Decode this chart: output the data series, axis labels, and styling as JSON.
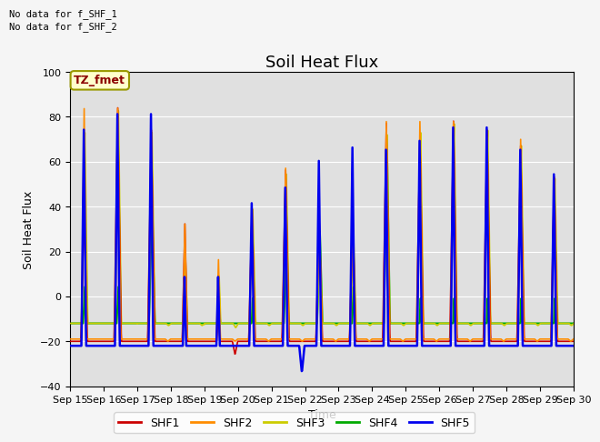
{
  "title": "Soil Heat Flux",
  "xlabel": "Time",
  "ylabel": "Soil Heat Flux",
  "ylim": [
    -40,
    100
  ],
  "yticks": [
    -40,
    -20,
    0,
    20,
    40,
    60,
    80,
    100
  ],
  "date_labels": [
    "Sep 15",
    "Sep 16",
    "Sep 17",
    "Sep 18",
    "Sep 19",
    "Sep 20",
    "Sep 21",
    "Sep 22",
    "Sep 23",
    "Sep 24",
    "Sep 25",
    "Sep 26",
    "Sep 27",
    "Sep 28",
    "Sep 29",
    "Sep 30"
  ],
  "no_data_text": [
    "No data for f_SHF_1",
    "No data for f_SHF_2"
  ],
  "annotation_label": "TZ_fmet",
  "annotation_bg": "#ffffcc",
  "annotation_border": "#999900",
  "legend_labels": [
    "SHF1",
    "SHF2",
    "SHF3",
    "SHF4",
    "SHF5"
  ],
  "line_colors": [
    "#cc0000",
    "#ff8c00",
    "#cccc00",
    "#00aa00",
    "#0000ee"
  ],
  "background_color": "#e0e0e0",
  "grid_color": "#ffffff",
  "title_fontsize": 13,
  "axis_label_fontsize": 9,
  "tick_fontsize": 8
}
